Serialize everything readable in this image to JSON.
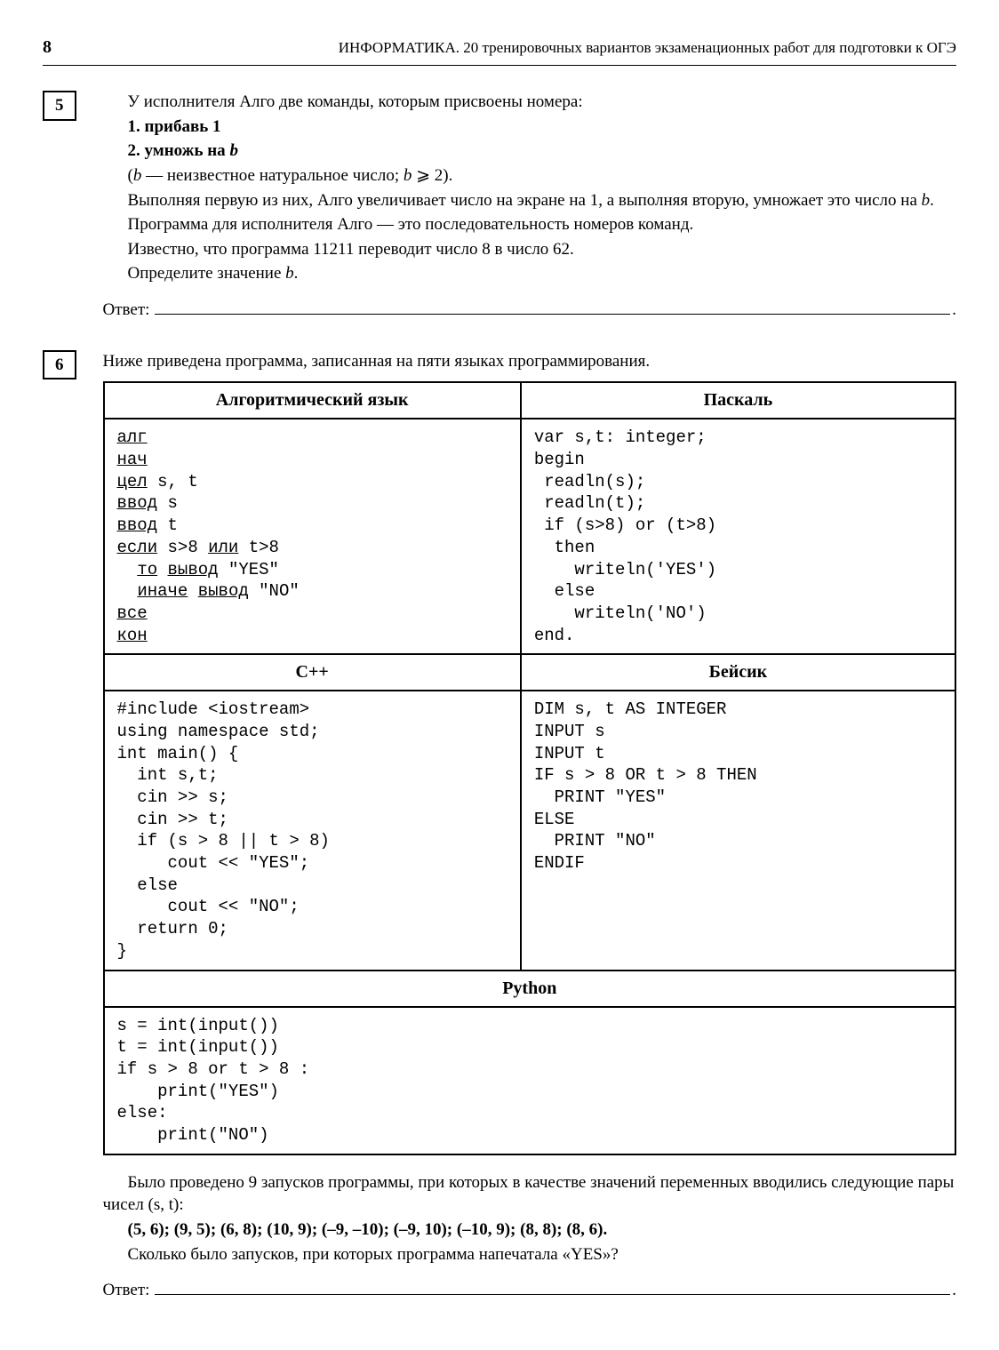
{
  "page": {
    "number": "8",
    "header": "ИНФОРМАТИКА. 20 тренировочных вариантов экзаменационных работ для подготовки к ОГЭ"
  },
  "task5": {
    "number": "5",
    "line1": "У исполнителя Алго две команды, которым присвоены номера:",
    "cmd1": "1. прибавь 1",
    "cmd2_prefix": "2. умножь на ",
    "cmd2_var": "b",
    "paren_open": "(",
    "paren_var": "b",
    "paren_rest": " — неизвестное натуральное число; ",
    "paren_cond_var": "b",
    "paren_cond_rest": " ⩾ 2).",
    "line4a": "Выполняя первую из них, Алго увеличивает число на экране на 1, а выполняя вторую, умножает это число на ",
    "line4b": "b",
    "line4c": ".",
    "line5": "Программа для исполнителя Алго — это последовательность номеров команд.",
    "line6": "Известно, что программа 11211 переводит число 8 в число 62.",
    "line7a": "Определите значение ",
    "line7b": "b",
    "line7c": ".",
    "answer_label": "Ответ:"
  },
  "task6": {
    "number": "6",
    "intro": "Ниже приведена программа, записанная на пяти языках программирования.",
    "headers": {
      "alg": "Алгоритмический язык",
      "pascal": "Паскаль",
      "cpp": "С++",
      "basic": "Бейсик",
      "python": "Python"
    },
    "code": {
      "alg_parts": [
        {
          "k": true,
          "t": "алг"
        },
        {
          "k": false,
          "t": "\n"
        },
        {
          "k": true,
          "t": "нач"
        },
        {
          "k": false,
          "t": "\n"
        },
        {
          "k": true,
          "t": "цел"
        },
        {
          "k": false,
          "t": " s, t\n"
        },
        {
          "k": true,
          "t": "ввод"
        },
        {
          "k": false,
          "t": " s\n"
        },
        {
          "k": true,
          "t": "ввод"
        },
        {
          "k": false,
          "t": " t\n"
        },
        {
          "k": true,
          "t": "если"
        },
        {
          "k": false,
          "t": " s>8 "
        },
        {
          "k": true,
          "t": "или"
        },
        {
          "k": false,
          "t": " t>8\n  "
        },
        {
          "k": true,
          "t": "то"
        },
        {
          "k": false,
          "t": " "
        },
        {
          "k": true,
          "t": "вывод"
        },
        {
          "k": false,
          "t": " \"YES\"\n  "
        },
        {
          "k": true,
          "t": "иначе"
        },
        {
          "k": false,
          "t": " "
        },
        {
          "k": true,
          "t": "вывод"
        },
        {
          "k": false,
          "t": " \"NO\"\n"
        },
        {
          "k": true,
          "t": "все"
        },
        {
          "k": false,
          "t": "\n"
        },
        {
          "k": true,
          "t": "кон"
        }
      ],
      "pascal": "var s,t: integer;\nbegin\n readln(s);\n readln(t);\n if (s>8) or (t>8)\n  then\n    writeln('YES')\n  else\n    writeln('NO')\nend.",
      "cpp": "#include <iostream>\nusing namespace std;\nint main() {\n  int s,t;\n  cin >> s;\n  cin >> t;\n  if (s > 8 || t > 8)\n     cout << \"YES\";\n  else\n     cout << \"NO\";\n  return 0;\n}",
      "basic": "DIM s, t AS INTEGER\nINPUT s\nINPUT t\nIF s > 8 OR t > 8 THEN\n  PRINT \"YES\"\nELSE\n  PRINT \"NO\"\nENDIF",
      "python": "s = int(input())\nt = int(input())\nif s > 8 or t > 8 :\n    print(\"YES\")\nelse:\n    print(\"NO\")"
    },
    "after1": "Было проведено 9 запусков программы, при которых в качестве значений переменных вводились следующие пары чисел (s, t):",
    "pairs": "(5, 6); (9, 5); (6, 8); (10, 9); (–9, –10); (–9, 10); (–10, 9); (8, 8); (8, 6).",
    "after2": "Сколько было запусков, при которых программа напечатала «YES»?",
    "answer_label": "Ответ:"
  }
}
